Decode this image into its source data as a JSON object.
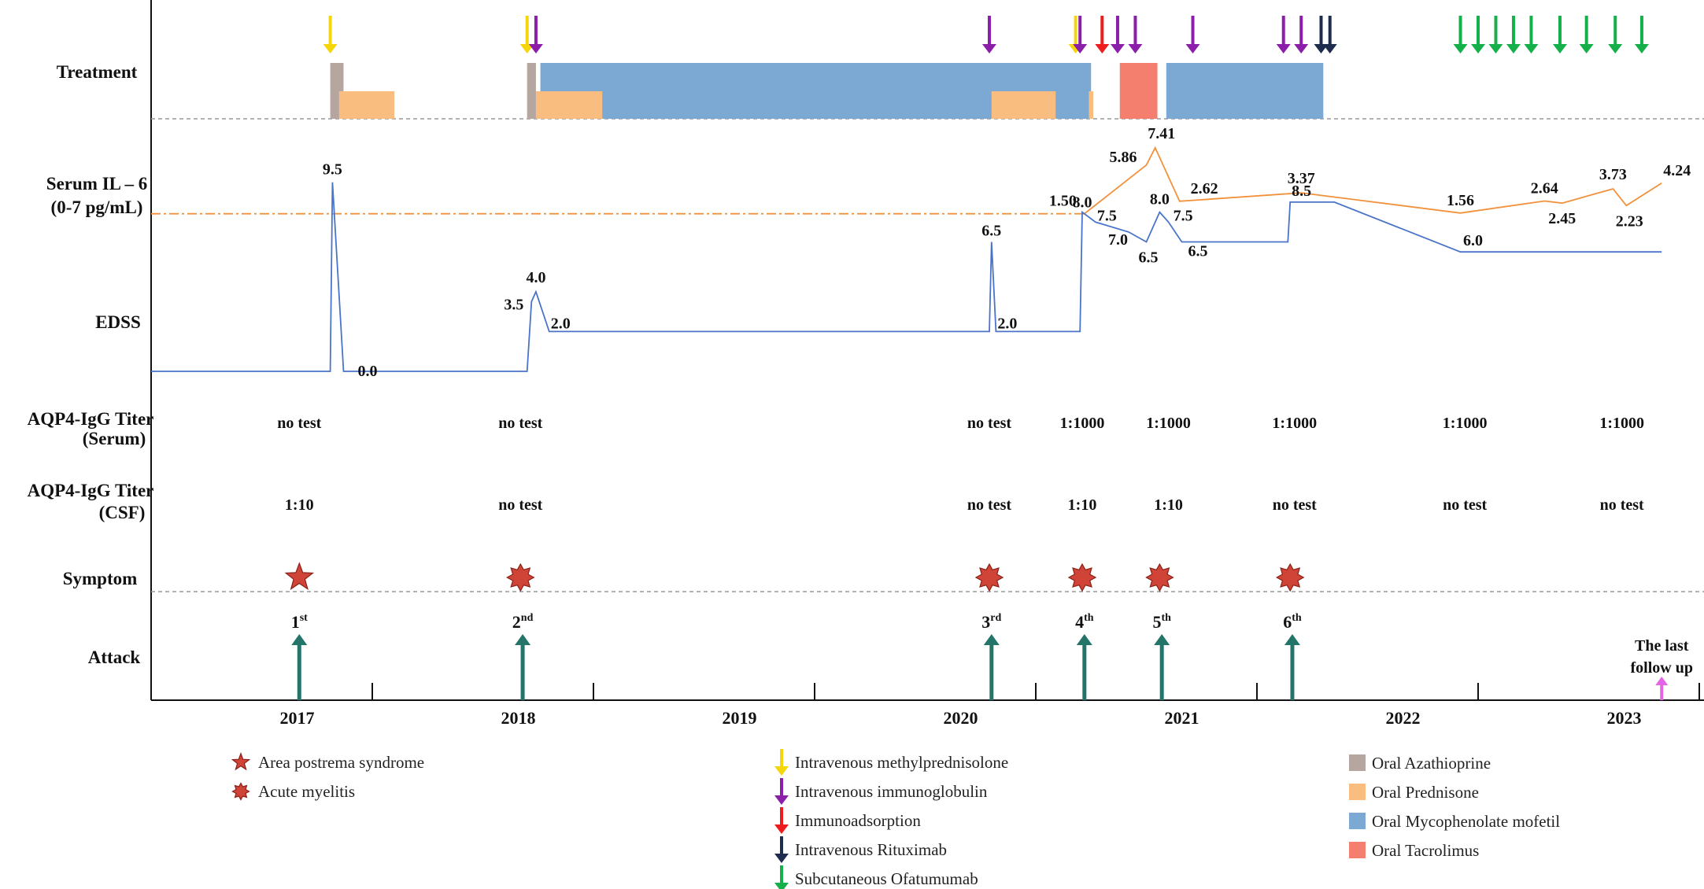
{
  "chart_data": {
    "type": "timeline",
    "row_labels": {
      "treatment": "Treatment",
      "il6": [
        "Serum IL – 6",
        "(0-7 pg/mL)"
      ],
      "edss": "EDSS",
      "aqp4_serum": [
        "AQP4-IgG Titer",
        "(Serum)"
      ],
      "aqp4_csf": [
        "AQP4-IgG Titer",
        "(CSF)"
      ],
      "symptom": "Symptom",
      "attack": "Attack"
    },
    "years": [
      "2017",
      "2018",
      "2019",
      "2020",
      "2021",
      "2022",
      "2023"
    ],
    "colors": {
      "methylprednisolone": "#f5d60a",
      "immunoglobulin": "#8b1fa9",
      "immunoadsorption": "#ee1c1c",
      "rituximab": "#1e2c4e",
      "ofatumumab": "#16b04a",
      "azathioprine": "#b5a6a0",
      "prednisone": "#f9bd80",
      "mycophenolate": "#7ba9d4",
      "tacrolimus": "#f47f6f",
      "il6_line": "#f2913c",
      "edss_line": "#4a74c9",
      "attack_arrow": "#23756a",
      "followup_arrow": "#e464e4",
      "symptom_fill": "#cf4436",
      "symptom_stroke": "#8a2018"
    },
    "treatment_arrows": [
      {
        "type": "methylprednisolone",
        "t": 2016.81
      },
      {
        "type": "methylprednisolone",
        "t": 2017.7
      },
      {
        "type": "immunoglobulin",
        "t": 2017.74
      },
      {
        "type": "immunoglobulin",
        "t": 2019.79
      },
      {
        "type": "methylprednisolone",
        "t": 2020.18
      },
      {
        "type": "immunoglobulin",
        "t": 2020.2
      },
      {
        "type": "immunoadsorption",
        "t": 2020.3
      },
      {
        "type": "immunoglobulin",
        "t": 2020.37
      },
      {
        "type": "immunoglobulin",
        "t": 2020.45
      },
      {
        "type": "immunoglobulin",
        "t": 2020.71
      },
      {
        "type": "immunoglobulin",
        "t": 2021.12
      },
      {
        "type": "immunoglobulin",
        "t": 2021.2
      },
      {
        "type": "rituximab",
        "t": 2021.29
      },
      {
        "type": "rituximab",
        "t": 2021.33
      },
      {
        "type": "ofatumumab",
        "t": 2021.92
      },
      {
        "type": "ofatumumab",
        "t": 2022.0
      },
      {
        "type": "ofatumumab",
        "t": 2022.08
      },
      {
        "type": "ofatumumab",
        "t": 2022.16
      },
      {
        "type": "ofatumumab",
        "t": 2022.24
      },
      {
        "type": "ofatumumab",
        "t": 2022.37
      },
      {
        "type": "ofatumumab",
        "t": 2022.49
      },
      {
        "type": "ofatumumab",
        "t": 2022.62
      },
      {
        "type": "ofatumumab",
        "t": 2022.74
      }
    ],
    "treatment_bars": [
      {
        "type": "azathioprine",
        "start": 2016.81,
        "end": 2016.87,
        "level": "tall"
      },
      {
        "type": "prednisone",
        "start": 2016.85,
        "end": 2017.1,
        "level": "short"
      },
      {
        "type": "azathioprine",
        "start": 2017.7,
        "end": 2017.74,
        "level": "tall"
      },
      {
        "type": "mycophenolate",
        "start": 2017.76,
        "end": 2020.25,
        "level": "tall"
      },
      {
        "type": "prednisone",
        "start": 2017.74,
        "end": 2018.04,
        "level": "short"
      },
      {
        "type": "prednisone",
        "start": 2019.8,
        "end": 2020.09,
        "level": "short"
      },
      {
        "type": "prednisone",
        "start": 2020.24,
        "end": 2020.26,
        "level": "short"
      },
      {
        "type": "tacrolimus",
        "start": 2020.38,
        "end": 2020.55,
        "level": "tall"
      },
      {
        "type": "mycophenolate",
        "start": 2020.59,
        "end": 2021.3,
        "level": "tall"
      }
    ],
    "il6": {
      "baseline_dashed_to": 2020.22,
      "points": [
        {
          "t": 2020.22,
          "v": 1.5,
          "label": "1.50"
        },
        {
          "t": 2020.5,
          "v": 5.86,
          "label": "5.86"
        },
        {
          "t": 2020.54,
          "v": 7.41,
          "label": "7.41"
        },
        {
          "t": 2020.65,
          "v": 2.62,
          "label": "2.62"
        },
        {
          "t": 2021.2,
          "v": 3.37,
          "label": "3.37"
        },
        {
          "t": 2021.92,
          "v": 1.56,
          "label": "1.56"
        },
        {
          "t": 2022.3,
          "v": 2.64,
          "label": "2.64"
        },
        {
          "t": 2022.38,
          "v": 2.45,
          "label": "2.45"
        },
        {
          "t": 2022.61,
          "v": 3.73,
          "label": "3.73"
        },
        {
          "t": 2022.67,
          "v": 2.23,
          "label": "2.23"
        },
        {
          "t": 2022.83,
          "v": 4.24,
          "label": "4.24"
        }
      ]
    },
    "edss": {
      "start": 2016.0,
      "end": 2022.83,
      "points": [
        {
          "t": 2016.0,
          "v": 0.0
        },
        {
          "t": 2016.81,
          "v": 0.0
        },
        {
          "t": 2016.82,
          "v": 9.5,
          "label": "9.5"
        },
        {
          "t": 2016.87,
          "v": 0.0,
          "label": "0.0"
        },
        {
          "t": 2017.7,
          "v": 0.0
        },
        {
          "t": 2017.72,
          "v": 3.5,
          "label": "3.5"
        },
        {
          "t": 2017.74,
          "v": 4.0,
          "label": "4.0"
        },
        {
          "t": 2017.8,
          "v": 2.0,
          "label": "2.0"
        },
        {
          "t": 2019.79,
          "v": 2.0
        },
        {
          "t": 2019.8,
          "v": 6.5,
          "label": "6.5"
        },
        {
          "t": 2019.82,
          "v": 2.0,
          "label": "2.0"
        },
        {
          "t": 2020.2,
          "v": 2.0
        },
        {
          "t": 2020.21,
          "v": 8.0,
          "label": "8.0"
        },
        {
          "t": 2020.27,
          "v": 7.5,
          "label": "7.5"
        },
        {
          "t": 2020.42,
          "v": 7.0,
          "label": "7.0"
        },
        {
          "t": 2020.5,
          "v": 6.5,
          "label": "6.5"
        },
        {
          "t": 2020.56,
          "v": 8.0,
          "label": "8.0"
        },
        {
          "t": 2020.6,
          "v": 7.5,
          "label": "7.5"
        },
        {
          "t": 2020.66,
          "v": 6.5,
          "label": "6.5"
        },
        {
          "t": 2021.14,
          "v": 6.5
        },
        {
          "t": 2021.15,
          "v": 8.5,
          "label": "8.5"
        },
        {
          "t": 2021.35,
          "v": 8.5
        },
        {
          "t": 2021.92,
          "v": 6.0,
          "label": "6.0"
        },
        {
          "t": 2022.83,
          "v": 6.0
        }
      ]
    },
    "aqp4_serum": [
      {
        "t": 2016.67,
        "text": "no test"
      },
      {
        "t": 2017.67,
        "text": "no test"
      },
      {
        "t": 2019.79,
        "text": "no test"
      },
      {
        "t": 2020.21,
        "text": "1:1000"
      },
      {
        "t": 2020.6,
        "text": "1:1000"
      },
      {
        "t": 2021.17,
        "text": "1:1000"
      },
      {
        "t": 2021.94,
        "text": "1:1000"
      },
      {
        "t": 2022.65,
        "text": "1:1000"
      }
    ],
    "aqp4_csf": [
      {
        "t": 2016.67,
        "text": "1:10"
      },
      {
        "t": 2017.67,
        "text": "no test"
      },
      {
        "t": 2019.79,
        "text": "no test"
      },
      {
        "t": 2020.21,
        "text": "1:10"
      },
      {
        "t": 2020.6,
        "text": "1:10"
      },
      {
        "t": 2021.17,
        "text": "no test"
      },
      {
        "t": 2021.94,
        "text": "no test"
      },
      {
        "t": 2022.65,
        "text": "no test"
      }
    ],
    "symptoms": [
      {
        "t": 2016.67,
        "kind": "area_postrema"
      },
      {
        "t": 2017.67,
        "kind": "acute_myelitis"
      },
      {
        "t": 2019.79,
        "kind": "acute_myelitis"
      },
      {
        "t": 2020.21,
        "kind": "acute_myelitis"
      },
      {
        "t": 2020.56,
        "kind": "acute_myelitis"
      },
      {
        "t": 2021.15,
        "kind": "acute_myelitis"
      }
    ],
    "attacks": [
      {
        "t": 2016.67,
        "num": "1",
        "sup": "st"
      },
      {
        "t": 2017.68,
        "num": "2",
        "sup": "nd"
      },
      {
        "t": 2019.8,
        "num": "3",
        "sup": "rd"
      },
      {
        "t": 2020.22,
        "num": "4",
        "sup": "th"
      },
      {
        "t": 2020.57,
        "num": "5",
        "sup": "th"
      },
      {
        "t": 2021.16,
        "num": "6",
        "sup": "th"
      }
    ],
    "last_follow_up": {
      "t": 2022.83,
      "text": [
        "The last",
        "follow up"
      ]
    },
    "legend": {
      "symptoms": [
        {
          "kind": "area_postrema",
          "label": "Area postrema syndrome"
        },
        {
          "kind": "acute_myelitis",
          "label": "Acute myelitis"
        }
      ],
      "arrows": [
        {
          "type": "methylprednisolone",
          "label": "Intravenous methylprednisolone"
        },
        {
          "type": "immunoglobulin",
          "label": "Intravenous immunoglobulin"
        },
        {
          "type": "immunoadsorption",
          "label": "Immunoadsorption"
        },
        {
          "type": "rituximab",
          "label": "Intravenous Rituximab"
        },
        {
          "type": "ofatumumab",
          "label": "Subcutaneous Ofatumumab"
        }
      ],
      "bars": [
        {
          "type": "azathioprine",
          "label": "Oral Azathioprine"
        },
        {
          "type": "prednisone",
          "label": "Oral Prednisone"
        },
        {
          "type": "mycophenolate",
          "label": "Oral Mycophenolate mofetil"
        },
        {
          "type": "tacrolimus",
          "label": "Oral Tacrolimus"
        }
      ]
    }
  }
}
